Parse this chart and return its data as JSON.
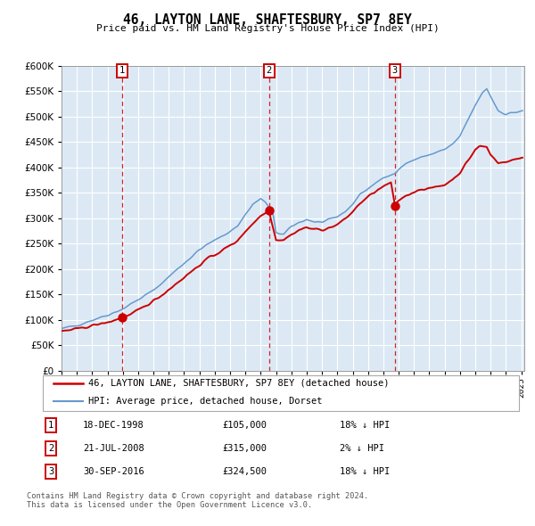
{
  "title": "46, LAYTON LANE, SHAFTESBURY, SP7 8EY",
  "subtitle": "Price paid vs. HM Land Registry's House Price Index (HPI)",
  "background_color": "#dce9f5",
  "plot_bg_color": "#dce9f5",
  "fig_bg_color": "#ffffff",
  "grid_color": "#ffffff",
  "ylim": [
    0,
    600000
  ],
  "yticks": [
    0,
    50000,
    100000,
    150000,
    200000,
    250000,
    300000,
    350000,
    400000,
    450000,
    500000,
    550000,
    600000
  ],
  "sale_prices": [
    105000,
    315000,
    324500
  ],
  "sale_labels": [
    "1",
    "2",
    "3"
  ],
  "sale_decimal": [
    1998.958,
    2008.542,
    2016.75
  ],
  "sale_info": [
    {
      "label": "1",
      "date": "18-DEC-1998",
      "price": "£105,000",
      "pct": "18%",
      "dir": "↓",
      "ref": "HPI"
    },
    {
      "label": "2",
      "date": "21-JUL-2008",
      "price": "£315,000",
      "pct": "2%",
      "dir": "↓",
      "ref": "HPI"
    },
    {
      "label": "3",
      "date": "30-SEP-2016",
      "price": "£324,500",
      "pct": "18%",
      "dir": "↓",
      "ref": "HPI"
    }
  ],
  "legend_entries": [
    {
      "label": "46, LAYTON LANE, SHAFTESBURY, SP7 8EY (detached house)",
      "color": "#cc0000",
      "lw": 1.8
    },
    {
      "label": "HPI: Average price, detached house, Dorset",
      "color": "#6699cc",
      "lw": 1.5
    }
  ],
  "footer": "Contains HM Land Registry data © Crown copyright and database right 2024.\nThis data is licensed under the Open Government Licence v3.0.",
  "hpi_line_color": "#6699cc",
  "price_line_color": "#cc0000",
  "marker_color": "#cc0000",
  "dashed_line_color": "#cc0000",
  "label_box_color": "#cc0000",
  "xlim": [
    1995.0,
    2025.2
  ]
}
